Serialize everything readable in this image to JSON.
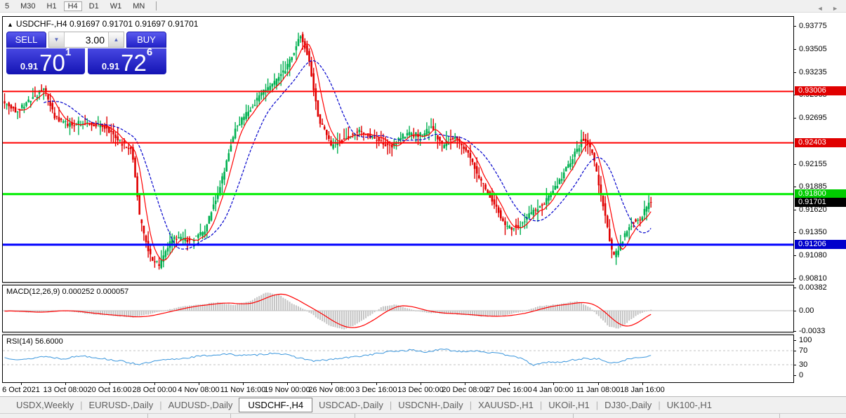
{
  "toolbar": {
    "timeframes": [
      {
        "label": "5",
        "active": false
      },
      {
        "label": "M30",
        "active": false
      },
      {
        "label": "H1",
        "active": false
      },
      {
        "label": "H4",
        "active": true
      },
      {
        "label": "D1",
        "active": false
      },
      {
        "label": "W1",
        "active": false
      },
      {
        "label": "MN",
        "active": false
      }
    ]
  },
  "symbol_info": {
    "marker": "▲",
    "symbol": "USDCHF-,H4",
    "ohlc": "0.91697 0.91701 0.91697 0.91701"
  },
  "trade_panel": {
    "sell_label": "SELL",
    "buy_label": "BUY",
    "volume": "3.00",
    "down_arrow": "▼",
    "up_arrow": "▲",
    "sell_price": {
      "prefix": "0.91",
      "big": "70",
      "sup": "1"
    },
    "buy_price": {
      "prefix": "0.91",
      "big": "72",
      "sup": "6"
    }
  },
  "macd": {
    "label": "MACD(12,26,9)",
    "values": "0.000252 0.000057",
    "axis_ticks": [
      "0.00382",
      "0.00",
      "-0.0033"
    ],
    "axis_values": [
      0.00382,
      0,
      -0.0033
    ]
  },
  "rsi": {
    "label": "RSI(14)",
    "value": "56.6000",
    "axis_ticks": [
      "100",
      "70",
      "30",
      "0"
    ],
    "axis_values": [
      100,
      70,
      30,
      0
    ],
    "guides": [
      70,
      30
    ]
  },
  "price_axis": {
    "ticks": [
      0.93775,
      0.93505,
      0.93235,
      0.92965,
      0.92695,
      0.92155,
      0.91885,
      0.9162,
      0.9135,
      0.9108,
      0.9081
    ]
  },
  "levels": [
    {
      "value": 0.93006,
      "badge": "#e00000",
      "line": "#ff0000",
      "width": 2
    },
    {
      "value": 0.92403,
      "badge": "#e00000",
      "line": "#ff0000",
      "width": 2
    },
    {
      "value": 0.918,
      "badge": "#00cc00",
      "line": "#00ee00",
      "width": 3
    },
    {
      "value": 0.91206,
      "badge": "#0000cc",
      "line": "#0000ff",
      "width": 3
    }
  ],
  "current_price": {
    "value": 0.91701,
    "badge": "#000000"
  },
  "time_axis": {
    "labels": [
      "6 Oct 2021",
      "13 Oct 08:00",
      "20 Oct 16:00",
      "28 Oct 00:00",
      "4 Nov 08:00",
      "11 Nov 16:00",
      "19 Nov 00:00",
      "26 Nov 08:00",
      "3 Dec 16:00",
      "13 Dec 00:00",
      "20 Dec 08:00",
      "27 Dec 16:00",
      "4 Jan 00:00",
      "11 Jan 08:00",
      "18 Jan 16:00"
    ]
  },
  "tabs": {
    "items": [
      {
        "label": "USDX,Weekly",
        "active": false
      },
      {
        "label": "EURUSD-,Daily",
        "active": false
      },
      {
        "label": "AUDUSD-,Daily",
        "active": false
      },
      {
        "label": "USDCHF-,H4",
        "active": true
      },
      {
        "label": "USDCAD-,Daily",
        "active": false
      },
      {
        "label": "USDCNH-,Daily",
        "active": false
      },
      {
        "label": "XAUUSD-,H1",
        "active": false
      },
      {
        "label": "UKOil-,H1",
        "active": false
      },
      {
        "label": "DJ30-,Daily",
        "active": false
      },
      {
        "label": "UK100-,H1",
        "active": false
      }
    ],
    "nav_left": "◄",
    "nav_right": "►"
  },
  "chart_data": {
    "type": "candlestick",
    "symbol": "USDCHF-",
    "timeframe": "H4",
    "price_scale": {
      "top_tick": 0.93775,
      "bottom_tick": 0.9081,
      "tick_step": 0.0027
    },
    "candle_count": 298,
    "price_path": [
      [
        0.0,
        0.9288
      ],
      [
        0.02,
        0.9278
      ],
      [
        0.045,
        0.9292
      ],
      [
        0.063,
        0.9304
      ],
      [
        0.08,
        0.927
      ],
      [
        0.1,
        0.9262
      ],
      [
        0.13,
        0.9264
      ],
      [
        0.16,
        0.9258
      ],
      [
        0.18,
        0.9242
      ],
      [
        0.2,
        0.923
      ],
      [
        0.212,
        0.915
      ],
      [
        0.228,
        0.9106
      ],
      [
        0.242,
        0.9096
      ],
      [
        0.262,
        0.9128
      ],
      [
        0.29,
        0.9126
      ],
      [
        0.312,
        0.9136
      ],
      [
        0.338,
        0.9196
      ],
      [
        0.36,
        0.9258
      ],
      [
        0.385,
        0.9282
      ],
      [
        0.4,
        0.93
      ],
      [
        0.42,
        0.931
      ],
      [
        0.44,
        0.933
      ],
      [
        0.46,
        0.9366
      ],
      [
        0.472,
        0.9342
      ],
      [
        0.488,
        0.927
      ],
      [
        0.508,
        0.9236
      ],
      [
        0.528,
        0.9244
      ],
      [
        0.552,
        0.9254
      ],
      [
        0.578,
        0.9244
      ],
      [
        0.6,
        0.9236
      ],
      [
        0.622,
        0.925
      ],
      [
        0.648,
        0.925
      ],
      [
        0.664,
        0.9258
      ],
      [
        0.68,
        0.9236
      ],
      [
        0.698,
        0.9248
      ],
      [
        0.718,
        0.923
      ],
      [
        0.738,
        0.9196
      ],
      [
        0.758,
        0.9172
      ],
      [
        0.778,
        0.914
      ],
      [
        0.798,
        0.9142
      ],
      [
        0.818,
        0.9158
      ],
      [
        0.838,
        0.917
      ],
      [
        0.858,
        0.9192
      ],
      [
        0.878,
        0.9218
      ],
      [
        0.898,
        0.9246
      ],
      [
        0.912,
        0.9228
      ],
      [
        0.928,
        0.9168
      ],
      [
        0.944,
        0.9104
      ],
      [
        0.958,
        0.9126
      ],
      [
        0.972,
        0.9146
      ],
      [
        0.986,
        0.9152
      ],
      [
        1.0,
        0.917
      ]
    ],
    "macd_path": [
      [
        0.0,
        0.0
      ],
      [
        0.04,
        -0.0003
      ],
      [
        0.08,
        0.0001
      ],
      [
        0.12,
        -0.0004
      ],
      [
        0.16,
        -0.0008
      ],
      [
        0.2,
        -0.0011
      ],
      [
        0.24,
        -0.0002
      ],
      [
        0.27,
        0.0006
      ],
      [
        0.3,
        0.001
      ],
      [
        0.33,
        0.0014
      ],
      [
        0.355,
        0.0009
      ],
      [
        0.38,
        0.0016
      ],
      [
        0.405,
        0.003
      ],
      [
        0.425,
        0.0026
      ],
      [
        0.445,
        0.0012
      ],
      [
        0.465,
        0.0002
      ],
      [
        0.485,
        -0.0013
      ],
      [
        0.505,
        -0.0026
      ],
      [
        0.525,
        -0.0031
      ],
      [
        0.545,
        -0.0022
      ],
      [
        0.565,
        -0.0008
      ],
      [
        0.585,
        0.0007
      ],
      [
        0.605,
        0.001
      ],
      [
        0.625,
        0.0003
      ],
      [
        0.65,
        -0.0003
      ],
      [
        0.68,
        -0.0005
      ],
      [
        0.71,
        -0.0007
      ],
      [
        0.74,
        -0.001
      ],
      [
        0.77,
        -0.0008
      ],
      [
        0.8,
        -0.0002
      ],
      [
        0.83,
        0.0008
      ],
      [
        0.86,
        0.0011
      ],
      [
        0.885,
        0.0016
      ],
      [
        0.905,
        0.0006
      ],
      [
        0.92,
        -0.001
      ],
      [
        0.935,
        -0.0026
      ],
      [
        0.95,
        -0.003
      ],
      [
        0.965,
        -0.0018
      ],
      [
        0.98,
        -0.0006
      ],
      [
        1.0,
        0.0002
      ]
    ],
    "rsi_path": [
      [
        0.0,
        50
      ],
      [
        0.03,
        44
      ],
      [
        0.06,
        54
      ],
      [
        0.09,
        47
      ],
      [
        0.12,
        56
      ],
      [
        0.15,
        48
      ],
      [
        0.18,
        40
      ],
      [
        0.21,
        31
      ],
      [
        0.24,
        42
      ],
      [
        0.27,
        47
      ],
      [
        0.3,
        54
      ],
      [
        0.34,
        60
      ],
      [
        0.38,
        56
      ],
      [
        0.42,
        64
      ],
      [
        0.45,
        52
      ],
      [
        0.48,
        40
      ],
      [
        0.51,
        46
      ],
      [
        0.54,
        52
      ],
      [
        0.57,
        60
      ],
      [
        0.6,
        68
      ],
      [
        0.63,
        72
      ],
      [
        0.65,
        66
      ],
      [
        0.68,
        74
      ],
      [
        0.7,
        68
      ],
      [
        0.73,
        70
      ],
      [
        0.76,
        62
      ],
      [
        0.79,
        55
      ],
      [
        0.82,
        28
      ],
      [
        0.84,
        38
      ],
      [
        0.86,
        36
      ],
      [
        0.88,
        44
      ],
      [
        0.9,
        48
      ],
      [
        0.92,
        46
      ],
      [
        0.93,
        40
      ],
      [
        0.94,
        33
      ],
      [
        0.96,
        44
      ],
      [
        0.98,
        50
      ],
      [
        1.0,
        56.6
      ]
    ],
    "colors": {
      "up": "#00b050",
      "down": "#e00000",
      "ma_fast": "#ff0000",
      "ma_slow": "#0000cc",
      "macd_hist": "#c4c4c4",
      "macd_signal": "#ff0000",
      "rsi_line": "#3a96dd",
      "grid_dash": "#c0c0c0"
    }
  }
}
